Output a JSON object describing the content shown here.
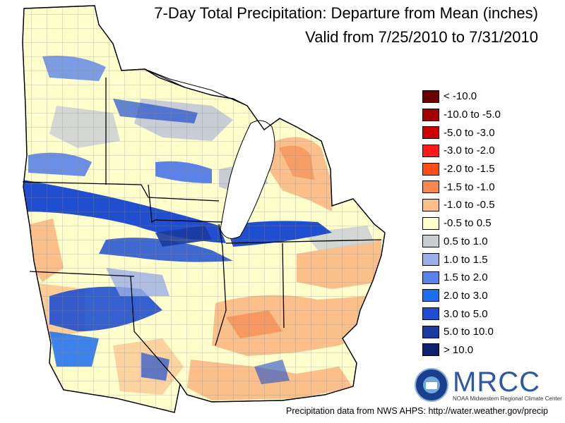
{
  "title_line1": "7-Day Total Precipitation: Departure from Mean (inches)",
  "title_line2": "Valid from 7/25/2010 to 7/31/2010",
  "legend": [
    {
      "label": "< -10.0",
      "color": "#6b0000"
    },
    {
      "label": "-10.0 to -5.0",
      "color": "#a30000"
    },
    {
      "label": "-5.0 to -3.0",
      "color": "#cc0000"
    },
    {
      "label": "-3.0 to -2.0",
      "color": "#ff1a1a"
    },
    {
      "label": "-2.0 to -1.5",
      "color": "#ff4d1a"
    },
    {
      "label": "-1.5 to -1.0",
      "color": "#f5874f"
    },
    {
      "label": "-1.0 to -0.5",
      "color": "#fbbf8a"
    },
    {
      "label": "-0.5 to 0.5",
      "color": "#ffffcc"
    },
    {
      "label": "0.5 to 1.0",
      "color": "#c8ccd4"
    },
    {
      "label": "1.0 to 1.5",
      "color": "#9aaee8"
    },
    {
      "label": "1.5 to 2.0",
      "color": "#5a82e8"
    },
    {
      "label": "2.0 to 3.0",
      "color": "#1a6ef0"
    },
    {
      "label": "3.0 to 5.0",
      "color": "#1f4fd0"
    },
    {
      "label": "5.0 to 10.0",
      "color": "#1a3aa0"
    },
    {
      "label": "> 10.0",
      "color": "#0f2070"
    }
  ],
  "logo": {
    "name": "MRCC",
    "subtitle": "NOAA Midwestern Regional Climate Center"
  },
  "footer": "Precipitation data from NWS AHPS:  http://water.weather.gov/precip"
}
